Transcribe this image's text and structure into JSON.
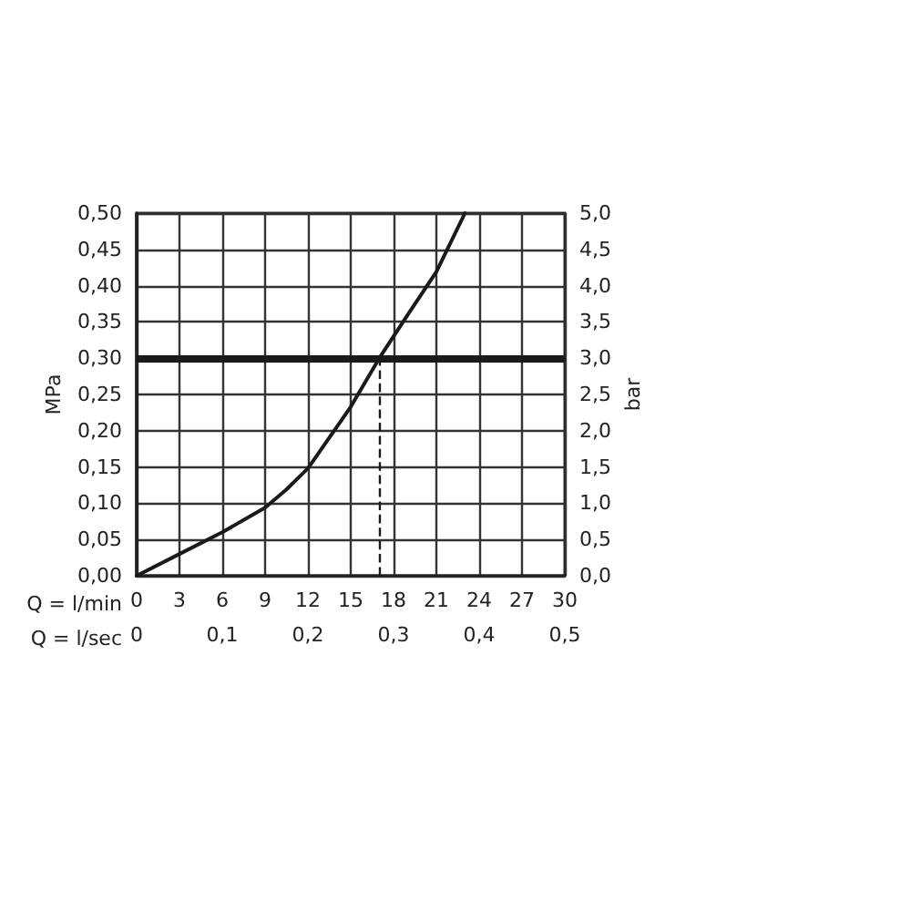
{
  "chart_data": {
    "type": "line",
    "xlabel": "Q = l/min",
    "x2label": "Q = l/sec",
    "ylabel": "MPa",
    "y2label": "bar",
    "series": [
      {
        "color": "#1a1a1a",
        "x": [
          0,
          3,
          6,
          9,
          10.5,
          12,
          15,
          17,
          19,
          21,
          23
        ],
        "values": [
          0,
          0.03,
          0.06,
          0.094,
          0.119,
          0.148,
          0.233,
          0.3,
          0.36,
          0.419,
          0.5
        ]
      }
    ],
    "xlim": [
      0,
      30
    ],
    "xticks": [
      0,
      3,
      6,
      9,
      12,
      15,
      18,
      21,
      24,
      27,
      30
    ],
    "x2lim": [
      0,
      0.5
    ],
    "x2ticks": [
      0,
      {
        "value": 0.1,
        "label": "0,1"
      },
      {
        "value": 0.2,
        "label": "0,2"
      },
      {
        "value": 0.3,
        "label": "0,3"
      },
      {
        "value": 0.4,
        "label": "0,4"
      },
      {
        "value": 0.5,
        "label": "0,5"
      }
    ],
    "ylim": [
      0,
      0.5
    ],
    "yticks": [
      {
        "value": 0,
        "label": "0,00"
      },
      {
        "value": 0.05,
        "label": "0,05"
      },
      {
        "value": 0.1,
        "label": "0,10"
      },
      {
        "value": 0.15,
        "label": "0,15"
      },
      {
        "value": 0.2,
        "label": "0,20"
      },
      {
        "value": 0.25,
        "label": "0,25"
      },
      {
        "value": 0.3,
        "label": "0,30"
      },
      {
        "value": 0.35,
        "label": "0,35"
      },
      {
        "value": 0.4,
        "label": "0,40"
      },
      {
        "value": 0.45,
        "label": "0,45"
      },
      {
        "value": 0.5,
        "label": "0,50"
      }
    ],
    "y2lim": [
      0,
      5
    ],
    "y2ticks": [
      {
        "value": 0,
        "label": "0,0"
      },
      {
        "value": 0.5,
        "label": "0,5"
      },
      {
        "value": 1,
        "label": "1,0"
      },
      {
        "value": 1.5,
        "label": "1,5"
      },
      {
        "value": 2,
        "label": "2,0"
      },
      {
        "value": 2.5,
        "label": "2,5"
      },
      {
        "value": 3,
        "label": "3,0"
      },
      {
        "value": 3.5,
        "label": "3,5"
      },
      {
        "value": 4,
        "label": "4,0"
      },
      {
        "value": 4.5,
        "label": "4,5"
      },
      {
        "value": 5,
        "label": "5,0"
      }
    ],
    "ref_lines": [
      {
        "axis": "y",
        "value": 0.3,
        "color": "#1a1a1a",
        "line_style": "solid"
      },
      {
        "axis": "x",
        "value": 17,
        "color": "#1a1a1a",
        "line_style": "dashed"
      }
    ],
    "grid": true,
    "marker": "none",
    "line_style": "solid"
  }
}
